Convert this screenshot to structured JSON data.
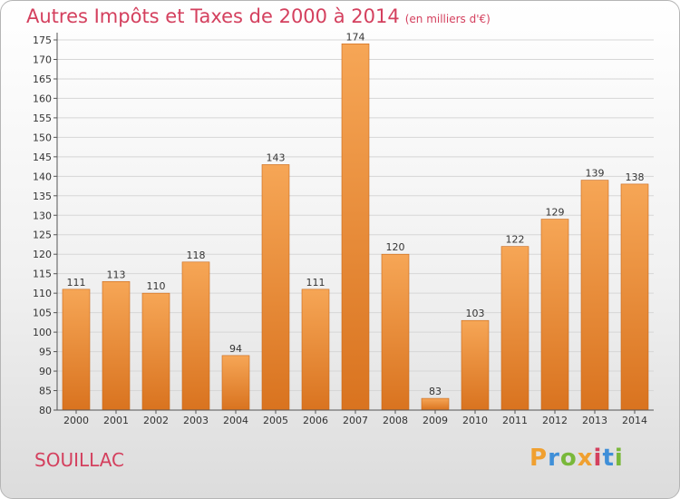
{
  "header": {
    "title": "Autres Impôts et Taxes de 2000 à 2014",
    "subtitle": "(en milliers d'€)"
  },
  "footer": {
    "commune": "SOUILLAC",
    "logo_text": "Proxiti"
  },
  "colors": {
    "title": "#d4405e",
    "bar_light": "#f6a656",
    "bar_dark": "#d9731f",
    "logo": [
      "#f0a030",
      "#3f8fd8",
      "#79b83a",
      "#f0a030",
      "#d4405e",
      "#3f8fd8",
      "#79b83a"
    ]
  },
  "chart_data": {
    "type": "bar",
    "categories": [
      "2000",
      "2001",
      "2002",
      "2003",
      "2004",
      "2005",
      "2006",
      "2007",
      "2008",
      "2009",
      "2010",
      "2011",
      "2012",
      "2013",
      "2014"
    ],
    "values": [
      111,
      113,
      110,
      118,
      94,
      143,
      111,
      174,
      120,
      83,
      103,
      122,
      129,
      139,
      138
    ],
    "ylim": [
      80,
      175
    ],
    "yticks": [
      80,
      85,
      90,
      95,
      100,
      105,
      110,
      115,
      120,
      125,
      130,
      135,
      140,
      145,
      150,
      155,
      160,
      165,
      170,
      175
    ],
    "grid": true,
    "data_labels": true
  }
}
